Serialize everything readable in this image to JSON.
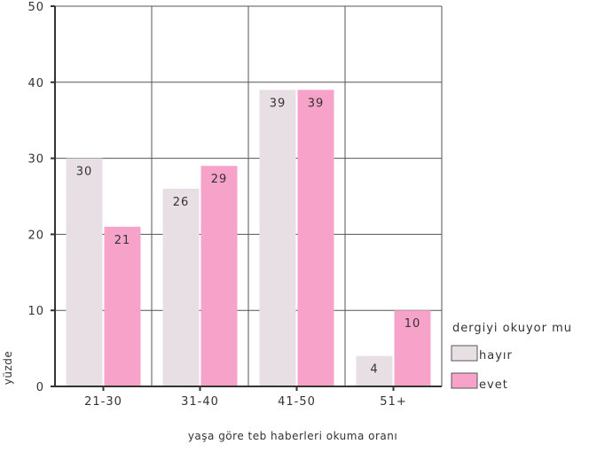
{
  "chart_data": {
    "type": "bar",
    "title": "",
    "xlabel": "yaşa göre teb haberleri okuma oranı",
    "ylabel": "yüzde",
    "categories": [
      "21-30",
      "31-40",
      "41-50",
      "51+"
    ],
    "series": [
      {
        "name": "hayır",
        "values": [
          30,
          26,
          39,
          4
        ],
        "color": "#e8dfe5"
      },
      {
        "name": "evet",
        "values": [
          21,
          29,
          39,
          10
        ],
        "color": "#f7a3c9"
      }
    ],
    "ylim": [
      0,
      50
    ],
    "yticks": [
      "0",
      "10",
      "20",
      "30",
      "40",
      "50"
    ],
    "grid": true,
    "legend": {
      "title": "dergiyi okuyor mu",
      "position": "right"
    }
  }
}
